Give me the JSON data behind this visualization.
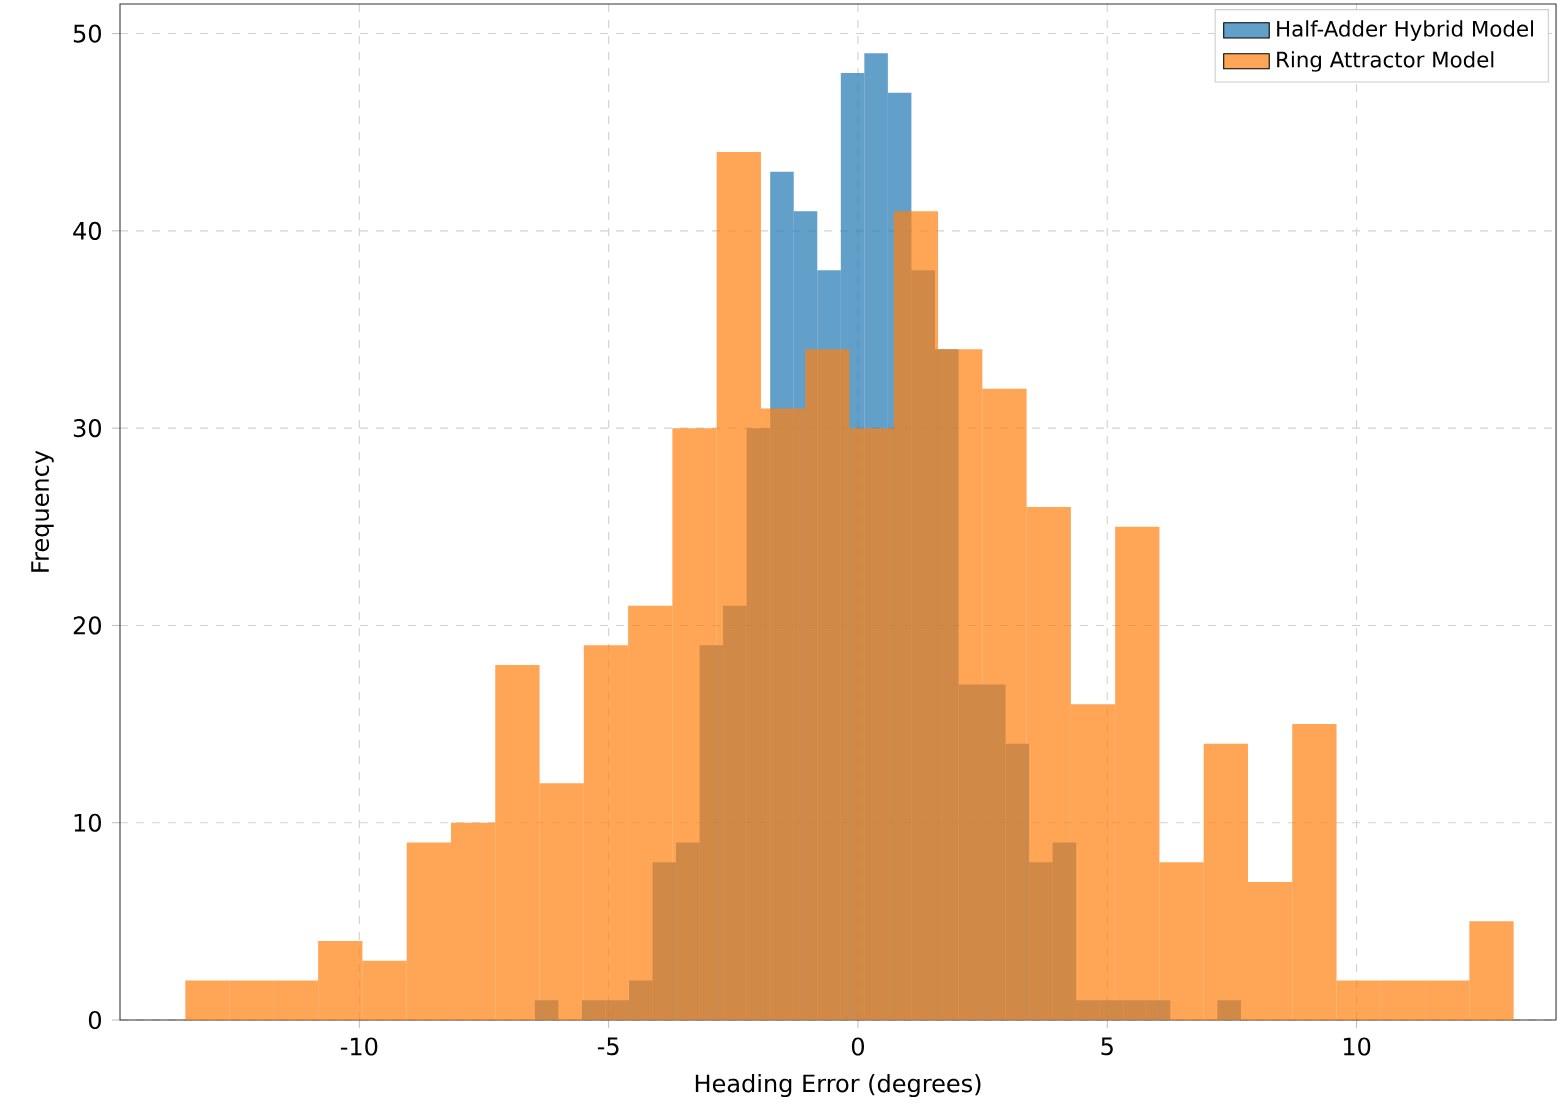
{
  "chart_data": {
    "type": "histogram",
    "xlabel": "Heading Error (degrees)",
    "ylabel": "Frequency",
    "bins": [
      -13.49,
      -12.602,
      -11.714,
      -10.826,
      -9.938,
      -9.05,
      -8.162,
      -7.274,
      -6.386,
      -5.498,
      -4.61,
      -3.722,
      -2.834,
      -1.946,
      -1.058,
      -0.17,
      0.718,
      1.606,
      2.494,
      3.382,
      4.27,
      5.158,
      6.046,
      6.934,
      7.822,
      8.71,
      9.598,
      10.486,
      11.374,
      12.262,
      13.15
    ],
    "series": [
      {
        "name": "Half-Adder Hybrid Model",
        "color": "#1f77b4",
        "bins": [
          -6.48,
          -6.008,
          -5.536,
          -5.064,
          -4.592,
          -4.12,
          -3.648,
          -3.176,
          -2.704,
          -2.232,
          -1.76,
          -1.288,
          -0.816,
          -0.344,
          0.128,
          0.6,
          1.072,
          1.544,
          2.016,
          2.488,
          2.96,
          3.432,
          3.904,
          4.376,
          4.848,
          5.32,
          5.792,
          6.264,
          6.736,
          7.208,
          7.68
        ],
        "values": [
          1,
          0,
          1,
          1,
          2,
          8,
          9,
          19,
          21,
          30,
          43,
          41,
          38,
          48,
          49,
          47,
          38,
          34,
          17,
          17,
          14,
          8,
          9,
          1,
          1,
          1,
          1,
          0,
          0,
          1
        ]
      },
      {
        "name": "Ring Attractor Model",
        "color": "#ff7f0e",
        "values": [
          2,
          2,
          2,
          4,
          3,
          9,
          10,
          18,
          12,
          19,
          21,
          30,
          44,
          31,
          34,
          30,
          41,
          34,
          32,
          26,
          16,
          25,
          8,
          14,
          7,
          15,
          2,
          2,
          2,
          5
        ]
      }
    ],
    "xlim": [
      -14.8,
      14.0
    ],
    "ylim": [
      0,
      51.5
    ],
    "xticks": [
      -10,
      -5,
      0,
      5,
      10
    ],
    "yticks": [
      0,
      10,
      20,
      30,
      40,
      50
    ],
    "grid": true,
    "legend": "top right"
  }
}
